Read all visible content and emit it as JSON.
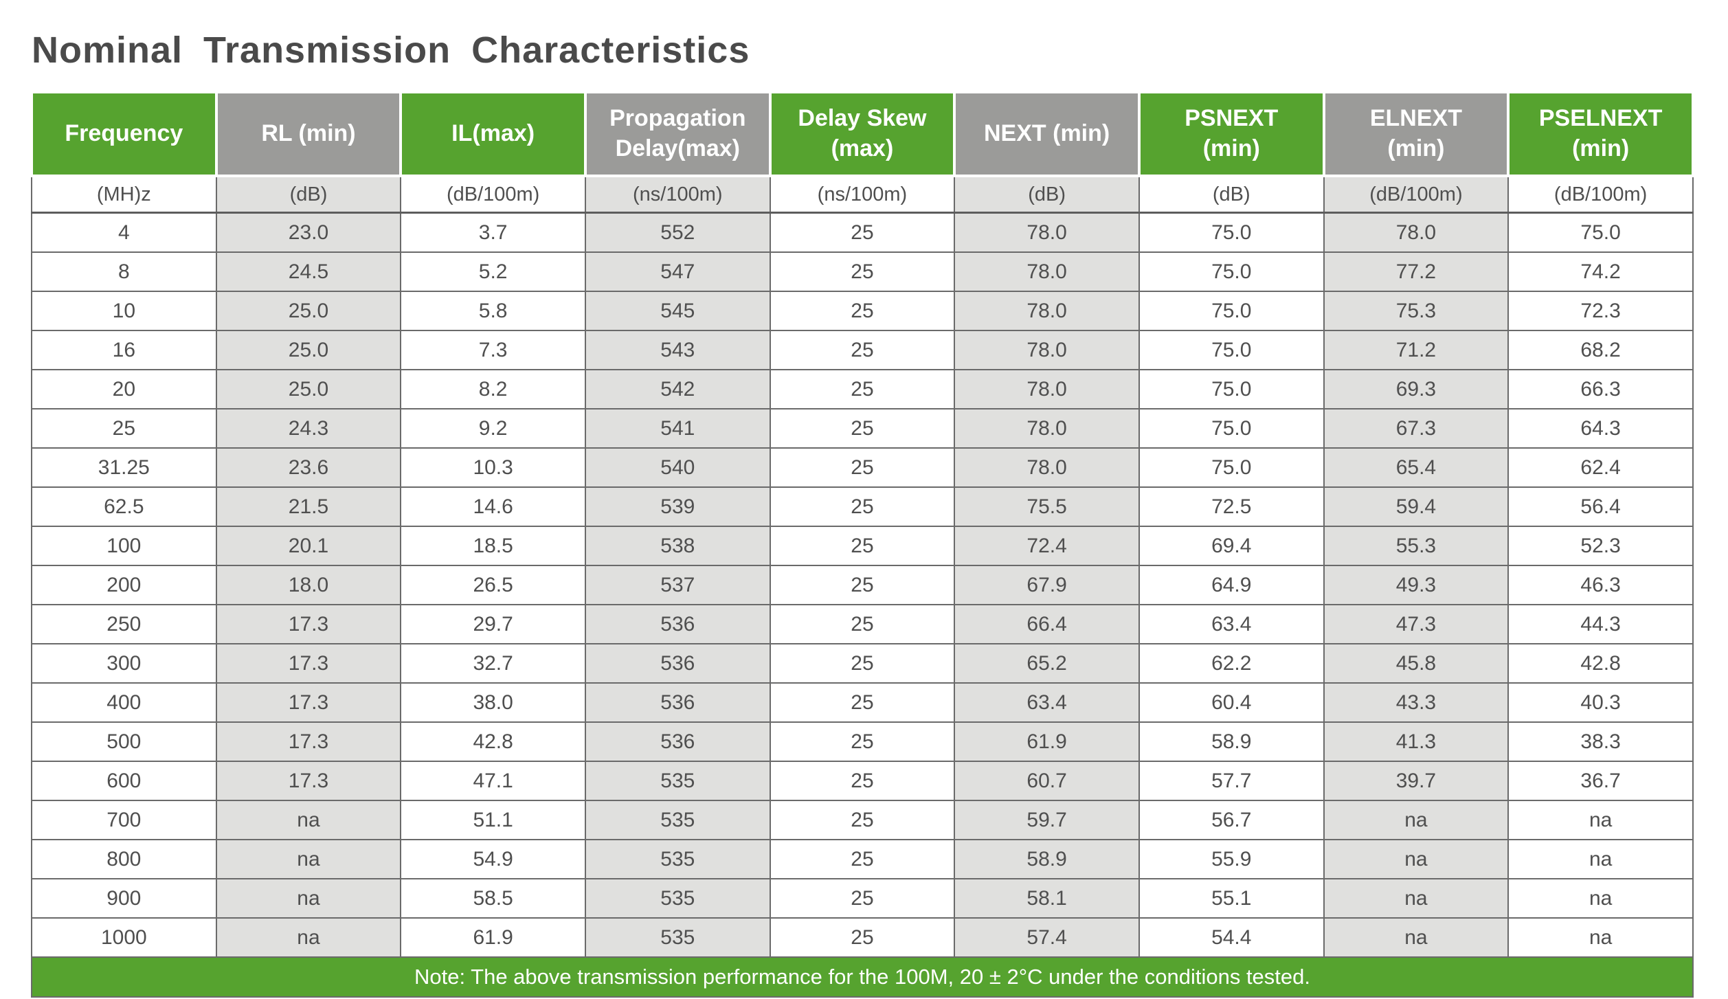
{
  "title": "Nominal Transmission Characteristics",
  "table": {
    "columns": [
      {
        "key": "frequency",
        "label": "Frequency",
        "unit": "(MH)z",
        "header_color": "green"
      },
      {
        "key": "rl-min",
        "label": "RL (min)",
        "unit": "(dB)",
        "header_color": "gray"
      },
      {
        "key": "il-max",
        "label": "IL(max)",
        "unit": "(dB/100m)",
        "header_color": "green"
      },
      {
        "key": "propagation-delay",
        "label": "Propagation\nDelay(max)",
        "unit": "(ns/100m)",
        "header_color": "gray"
      },
      {
        "key": "delay-skew",
        "label": "Delay Skew\n(max)",
        "unit": "(ns/100m)",
        "header_color": "green"
      },
      {
        "key": "next-min",
        "label": "NEXT (min)",
        "unit": "(dB)",
        "header_color": "gray"
      },
      {
        "key": "psnext-min",
        "label": "PSNEXT\n(min)",
        "unit": "(dB)",
        "header_color": "green"
      },
      {
        "key": "elnext-min",
        "label": "ELNEXT\n(min)",
        "unit": "(dB/100m)",
        "header_color": "gray"
      },
      {
        "key": "pselnext-min",
        "label": "PSELNEXT\n(min)",
        "unit": "(dB/100m)",
        "header_color": "green"
      }
    ],
    "rows": [
      [
        "4",
        "23.0",
        "3.7",
        "552",
        "25",
        "78.0",
        "75.0",
        "78.0",
        "75.0"
      ],
      [
        "8",
        "24.5",
        "5.2",
        "547",
        "25",
        "78.0",
        "75.0",
        "77.2",
        "74.2"
      ],
      [
        "10",
        "25.0",
        "5.8",
        "545",
        "25",
        "78.0",
        "75.0",
        "75.3",
        "72.3"
      ],
      [
        "16",
        "25.0",
        "7.3",
        "543",
        "25",
        "78.0",
        "75.0",
        "71.2",
        "68.2"
      ],
      [
        "20",
        "25.0",
        "8.2",
        "542",
        "25",
        "78.0",
        "75.0",
        "69.3",
        "66.3"
      ],
      [
        "25",
        "24.3",
        "9.2",
        "541",
        "25",
        "78.0",
        "75.0",
        "67.3",
        "64.3"
      ],
      [
        "31.25",
        "23.6",
        "10.3",
        "540",
        "25",
        "78.0",
        "75.0",
        "65.4",
        "62.4"
      ],
      [
        "62.5",
        "21.5",
        "14.6",
        "539",
        "25",
        "75.5",
        "72.5",
        "59.4",
        "56.4"
      ],
      [
        "100",
        "20.1",
        "18.5",
        "538",
        "25",
        "72.4",
        "69.4",
        "55.3",
        "52.3"
      ],
      [
        "200",
        "18.0",
        "26.5",
        "537",
        "25",
        "67.9",
        "64.9",
        "49.3",
        "46.3"
      ],
      [
        "250",
        "17.3",
        "29.7",
        "536",
        "25",
        "66.4",
        "63.4",
        "47.3",
        "44.3"
      ],
      [
        "300",
        "17.3",
        "32.7",
        "536",
        "25",
        "65.2",
        "62.2",
        "45.8",
        "42.8"
      ],
      [
        "400",
        "17.3",
        "38.0",
        "536",
        "25",
        "63.4",
        "60.4",
        "43.3",
        "40.3"
      ],
      [
        "500",
        "17.3",
        "42.8",
        "536",
        "25",
        "61.9",
        "58.9",
        "41.3",
        "38.3"
      ],
      [
        "600",
        "17.3",
        "47.1",
        "535",
        "25",
        "60.7",
        "57.7",
        "39.7",
        "36.7"
      ],
      [
        "700",
        "na",
        "51.1",
        "535",
        "25",
        "59.7",
        "56.7",
        "na",
        "na"
      ],
      [
        "800",
        "na",
        "54.9",
        "535",
        "25",
        "58.9",
        "55.9",
        "na",
        "na"
      ],
      [
        "900",
        "na",
        "58.5",
        "535",
        "25",
        "58.1",
        "55.1",
        "na",
        "na"
      ],
      [
        "1000",
        "na",
        "61.9",
        "535",
        "25",
        "57.4",
        "54.4",
        "na",
        "na"
      ]
    ],
    "note": "Note: The above transmission performance for the 100M, 20 ± 2°C under the conditions tested."
  },
  "colors": {
    "green": "#56a32f",
    "header_gray": "#9b9b99",
    "body_gray": "#e0e0de",
    "body_white": "#ffffff",
    "border": "#6a6a6a",
    "text": "#4f4f4f",
    "title": "#4a4a4a"
  }
}
